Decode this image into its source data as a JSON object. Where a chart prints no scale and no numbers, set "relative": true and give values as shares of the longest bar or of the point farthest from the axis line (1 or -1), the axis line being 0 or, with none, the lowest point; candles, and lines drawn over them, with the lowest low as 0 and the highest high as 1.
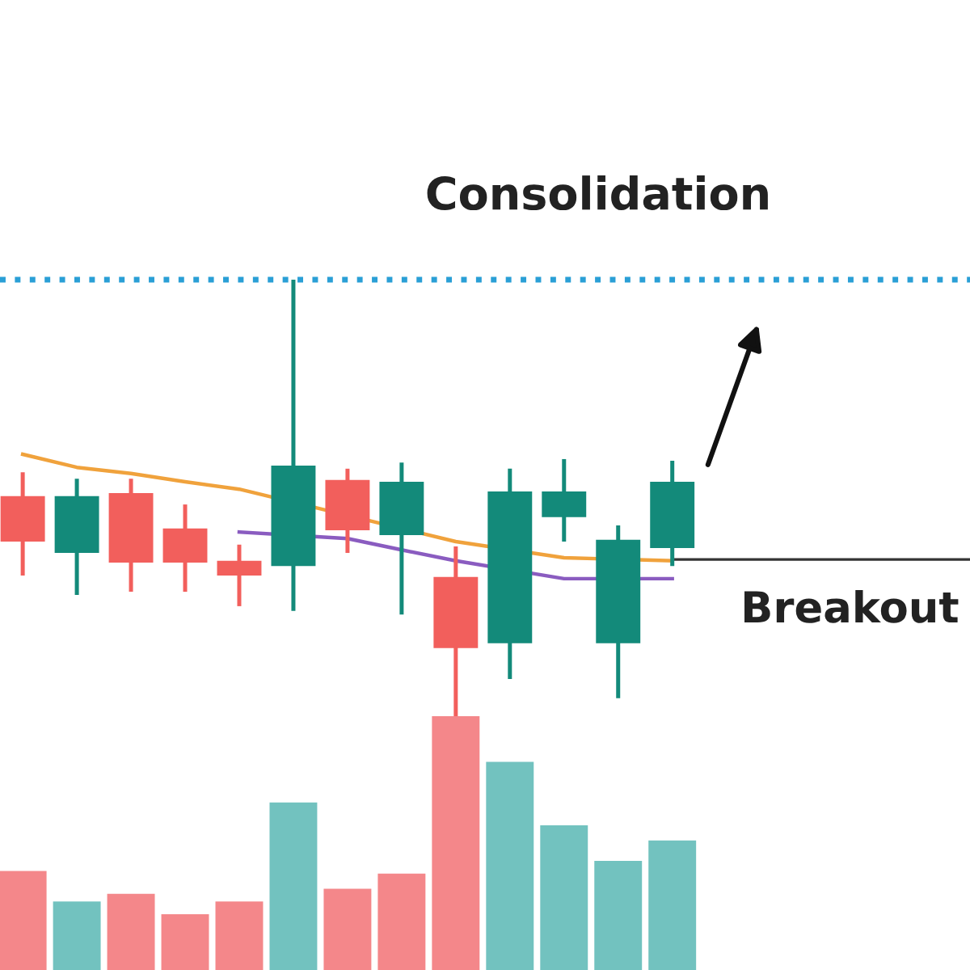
{
  "chart_data": [
    {
      "type": "candlestick",
      "relative": true,
      "categories": [
        null,
        null,
        null,
        null,
        null,
        null,
        null,
        null,
        null,
        null,
        null,
        null,
        null
      ],
      "ohlc": [
        [
          0.504,
          0.559,
          0.322,
          0.4
        ],
        [
          0.374,
          0.544,
          0.278,
          0.504
        ],
        [
          0.511,
          0.544,
          0.285,
          0.352
        ],
        [
          0.43,
          0.485,
          0.285,
          0.352
        ],
        [
          0.356,
          0.393,
          0.252,
          0.322
        ],
        [
          0.344,
          1.0,
          0.241,
          0.574
        ],
        [
          0.541,
          0.567,
          0.374,
          0.426
        ],
        [
          0.415,
          0.581,
          0.233,
          0.537
        ],
        [
          0.319,
          0.389,
          0.0,
          0.156
        ],
        [
          0.167,
          0.567,
          0.085,
          0.515
        ],
        [
          0.456,
          0.589,
          0.4,
          0.515
        ],
        [
          0.167,
          0.437,
          0.041,
          0.404
        ],
        [
          0.385,
          0.585,
          0.344,
          0.537
        ]
      ],
      "colors": [
        "#f25f5c",
        "#138a7a",
        "#f25f5c",
        "#f25f5c",
        "#f25f5c",
        "#138a7a",
        "#f25f5c",
        "#138a7a",
        "#f25f5c",
        "#138a7a",
        "#138a7a",
        "#138a7a",
        "#138a7a"
      ],
      "series": [
        {
          "type": "line",
          "color": "#f0a23c",
          "values": [
            0.6,
            0.57,
            0.556,
            0.537,
            0.52,
            null,
            null,
            null,
            0.4,
            null,
            0.363,
            null,
            0.356
          ]
        },
        {
          "type": "line",
          "color": "#8a5cc0",
          "values": [
            null,
            null,
            null,
            null,
            0.422,
            null,
            0.407,
            0.381,
            0.356,
            null,
            0.315,
            null,
            0.315
          ]
        }
      ],
      "ref_lines": [
        {
          "axis": "y",
          "value": 1.0,
          "color": "#2a9fd6",
          "line_style": "dotted"
        },
        {
          "axis": "y",
          "value": 0.359,
          "label": "Breakout",
          "color": "#333333",
          "line_style": "solid"
        }
      ],
      "annotations": [
        "Consolidation"
      ]
    },
    {
      "type": "bar",
      "relative": true,
      "categories": [
        null,
        null,
        null,
        null,
        null,
        null,
        null,
        null,
        null,
        null,
        null,
        null,
        null
      ],
      "values": [
        0.39,
        0.27,
        0.3,
        0.22,
        0.27,
        0.66,
        0.32,
        0.38,
        1,
        0.82,
        0.57,
        0.43,
        0.51
      ],
      "colors": [
        "#f4878a",
        "#72c2bf",
        "#f4878a",
        "#f4878a",
        "#f4878a",
        "#72c2bf",
        "#f4878a",
        "#f4878a",
        "#f4878a",
        "#72c2bf",
        "#72c2bf",
        "#72c2bf",
        "#72c2bf"
      ]
    }
  ]
}
